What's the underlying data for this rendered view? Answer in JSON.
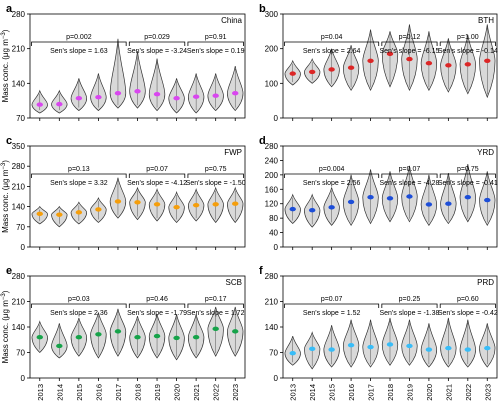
{
  "y_axis_label_main": "Mass conc. (μg m",
  "y_axis_label_sup": "−3",
  "y_axis_label_end": ")",
  "x_years": [
    "2013",
    "2014",
    "2015",
    "2016",
    "2017",
    "2018",
    "2019",
    "2020",
    "2021",
    "2022",
    "2023"
  ],
  "chart_data": [
    {
      "type": "violin",
      "panel_letter": "a",
      "region": "China",
      "ylim": [
        70,
        280
      ],
      "yticks": [
        70,
        140,
        210,
        280
      ],
      "marker_color": "#d946ef",
      "categories": [
        "2013",
        "2014",
        "2015",
        "2016",
        "2017",
        "2018",
        "2019",
        "2020",
        "2021",
        "2022",
        "2023"
      ],
      "means": [
        97,
        98,
        110,
        112,
        120,
        124,
        118,
        110,
        113,
        115,
        120
      ],
      "violin_range": [
        [
          80,
          125
        ],
        [
          80,
          125
        ],
        [
          85,
          150
        ],
        [
          85,
          160
        ],
        [
          90,
          230
        ],
        [
          90,
          205
        ],
        [
          85,
          190
        ],
        [
          80,
          150
        ],
        [
          80,
          160
        ],
        [
          85,
          160
        ],
        [
          85,
          175
        ]
      ],
      "periods": [
        {
          "label": "p=0.002",
          "slope_label": "Sen's slope = 1.63",
          "from": 0,
          "to": 4
        },
        {
          "label": "p=0.029",
          "slope_label": "Sen's slope = -3.24",
          "from": 5,
          "to": 7
        },
        {
          "label": "p=0.91",
          "slope_label": "Sen's slope = 0.19",
          "from": 8,
          "to": 10
        }
      ]
    },
    {
      "type": "violin",
      "panel_letter": "b",
      "region": "BTH",
      "ylim": [
        0,
        300
      ],
      "yticks": [
        0,
        100,
        200,
        300
      ],
      "marker_color": "#dc2626",
      "categories": [
        "2013",
        "2014",
        "2015",
        "2016",
        "2017",
        "2018",
        "2019",
        "2020",
        "2021",
        "2022",
        "2023"
      ],
      "means": [
        128,
        133,
        140,
        145,
        165,
        185,
        170,
        158,
        152,
        155,
        165
      ],
      "violin_range": [
        [
          95,
          165
        ],
        [
          100,
          170
        ],
        [
          90,
          200
        ],
        [
          80,
          210
        ],
        [
          80,
          255
        ],
        [
          90,
          250
        ],
        [
          80,
          270
        ],
        [
          80,
          250
        ],
        [
          75,
          230
        ],
        [
          70,
          240
        ],
        [
          60,
          270
        ]
      ],
      "periods": [
        {
          "label": "p=0.04",
          "slope_label": "Sen's slope = 2.64",
          "from": 0,
          "to": 4
        },
        {
          "label": "p=0.12",
          "slope_label": "Sen's slope = -6.15",
          "from": 5,
          "to": 7
        },
        {
          "label": "p=1.00",
          "slope_label": "Sen's slope = -0.14",
          "from": 8,
          "to": 10
        }
      ]
    },
    {
      "type": "violin",
      "panel_letter": "c",
      "region": "FWP",
      "ylim": [
        0,
        350
      ],
      "yticks": [
        0,
        70,
        140,
        210,
        280,
        350
      ],
      "marker_color": "#f59e0b",
      "categories": [
        "2013",
        "2014",
        "2015",
        "2016",
        "2017",
        "2018",
        "2019",
        "2020",
        "2021",
        "2022",
        "2023"
      ],
      "means": [
        115,
        112,
        120,
        130,
        158,
        155,
        148,
        138,
        145,
        148,
        150
      ],
      "violin_range": [
        [
          80,
          140
        ],
        [
          70,
          140
        ],
        [
          80,
          155
        ],
        [
          85,
          170
        ],
        [
          100,
          240
        ],
        [
          95,
          205
        ],
        [
          90,
          200
        ],
        [
          85,
          190
        ],
        [
          90,
          200
        ],
        [
          85,
          205
        ],
        [
          85,
          205
        ]
      ],
      "periods": [
        {
          "label": "p=0.13",
          "slope_label": "Sen's slope = 3.32",
          "from": 0,
          "to": 4
        },
        {
          "label": "p=0.07",
          "slope_label": "Sen's slope = -4.12",
          "from": 5,
          "to": 7
        },
        {
          "label": "p=0.75",
          "slope_label": "Sen's slope = -1.50",
          "from": 8,
          "to": 10
        }
      ]
    },
    {
      "type": "violin",
      "panel_letter": "d",
      "region": "YRD",
      "ylim": [
        0,
        280
      ],
      "yticks": [
        0,
        40,
        80,
        120,
        160,
        200,
        240,
        280
      ],
      "marker_color": "#1d4ed8",
      "categories": [
        "2013",
        "2014",
        "2015",
        "2016",
        "2017",
        "2018",
        "2019",
        "2020",
        "2021",
        "2022",
        "2023"
      ],
      "means": [
        105,
        102,
        110,
        125,
        138,
        135,
        140,
        118,
        120,
        138,
        130
      ],
      "violin_range": [
        [
          65,
          145
        ],
        [
          55,
          145
        ],
        [
          60,
          165
        ],
        [
          60,
          200
        ],
        [
          65,
          215
        ],
        [
          70,
          210
        ],
        [
          70,
          225
        ],
        [
          60,
          200
        ],
        [
          65,
          205
        ],
        [
          70,
          230
        ],
        [
          60,
          210
        ]
      ],
      "periods": [
        {
          "label": "p=0.004",
          "slope_label": "Sen's slope = 2.56",
          "from": 0,
          "to": 4
        },
        {
          "label": "p=0.07",
          "slope_label": "Sen's slope = -4.28",
          "from": 5,
          "to": 7
        },
        {
          "label": "p=0.75",
          "slope_label": "Sen's slope = -0.41",
          "from": 8,
          "to": 10
        }
      ]
    },
    {
      "type": "violin",
      "panel_letter": "e",
      "region": "SCB",
      "ylim": [
        0,
        280
      ],
      "yticks": [
        0,
        70,
        140,
        210,
        280
      ],
      "marker_color": "#16a34a",
      "categories": [
        "2013",
        "2014",
        "2015",
        "2016",
        "2017",
        "2018",
        "2019",
        "2020",
        "2021",
        "2022",
        "2023"
      ],
      "means": [
        112,
        88,
        112,
        120,
        128,
        112,
        115,
        110,
        112,
        135,
        128
      ],
      "violin_range": [
        [
          70,
          155
        ],
        [
          55,
          150
        ],
        [
          60,
          165
        ],
        [
          55,
          180
        ],
        [
          60,
          190
        ],
        [
          55,
          170
        ],
        [
          55,
          175
        ],
        [
          50,
          175
        ],
        [
          55,
          175
        ],
        [
          60,
          195
        ],
        [
          60,
          195
        ]
      ],
      "periods": [
        {
          "label": "p=0.03",
          "slope_label": "Sen's slope = 2.36",
          "from": 0,
          "to": 4
        },
        {
          "label": "p=0.46",
          "slope_label": "Sen's slope = -1.79",
          "from": 5,
          "to": 7
        },
        {
          "label": "p=0.17",
          "slope_label": "Sen's slope = 1.72",
          "from": 8,
          "to": 10
        }
      ]
    },
    {
      "type": "violin",
      "panel_letter": "f",
      "region": "PRD",
      "ylim": [
        0,
        280
      ],
      "yticks": [
        0,
        70,
        140,
        210,
        280
      ],
      "marker_color": "#38bdf8",
      "categories": [
        "2013",
        "2014",
        "2015",
        "2016",
        "2017",
        "2018",
        "2019",
        "2020",
        "2021",
        "2022",
        "2023"
      ],
      "means": [
        68,
        80,
        78,
        90,
        85,
        92,
        88,
        78,
        82,
        78,
        82
      ],
      "violin_range": [
        [
          35,
          115
        ],
        [
          25,
          125
        ],
        [
          30,
          145
        ],
        [
          30,
          160
        ],
        [
          30,
          160
        ],
        [
          35,
          165
        ],
        [
          35,
          160
        ],
        [
          30,
          150
        ],
        [
          30,
          165
        ],
        [
          30,
          160
        ],
        [
          30,
          150
        ]
      ],
      "periods": [
        {
          "label": "p=0.07",
          "slope_label": "Sen's slope = 1.52",
          "from": 0,
          "to": 4
        },
        {
          "label": "p=0.25",
          "slope_label": "Sen's slope = -1.38",
          "from": 5,
          "to": 7
        },
        {
          "label": "p=0.60",
          "slope_label": "Sen's slope = -0.42",
          "from": 8,
          "to": 10
        }
      ]
    }
  ]
}
